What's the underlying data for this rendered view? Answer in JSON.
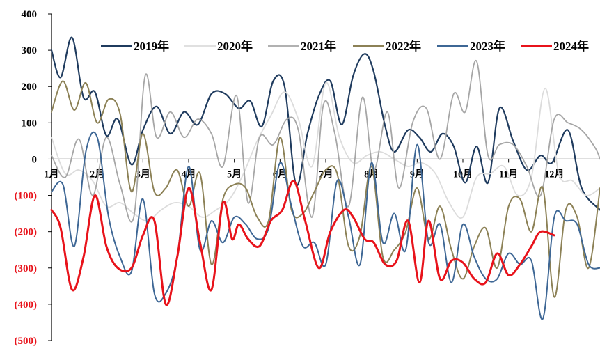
{
  "chart_data": {
    "type": "line",
    "title": "",
    "xlabel": "",
    "ylabel": "",
    "ylim": [
      -500,
      400
    ],
    "xlim": [
      1,
      13
    ],
    "grid": false,
    "legend_position": "top",
    "zero_label": "0",
    "yticks": [
      {
        "value": 400,
        "label": "400",
        "negative": false
      },
      {
        "value": 300,
        "label": "300",
        "negative": false
      },
      {
        "value": 200,
        "label": "200",
        "negative": false
      },
      {
        "value": 100,
        "label": "100",
        "negative": false
      },
      {
        "value": -100,
        "label": "(100)",
        "negative": true
      },
      {
        "value": -200,
        "label": "(200)",
        "negative": true
      },
      {
        "value": -300,
        "label": "(300)",
        "negative": true
      },
      {
        "value": -400,
        "label": "(400)",
        "negative": true
      },
      {
        "value": -500,
        "label": "(500)",
        "negative": true
      }
    ],
    "negative_label_color": "#e8131b",
    "xticks": [
      {
        "value": 1,
        "label": "1月"
      },
      {
        "value": 2,
        "label": "2月"
      },
      {
        "value": 3,
        "label": "3月"
      },
      {
        "value": 4,
        "label": "4月"
      },
      {
        "value": 5,
        "label": "5月"
      },
      {
        "value": 6,
        "label": "6月"
      },
      {
        "value": 7,
        "label": "7月"
      },
      {
        "value": 8,
        "label": "8月"
      },
      {
        "value": 9,
        "label": "9月"
      },
      {
        "value": 10,
        "label": "10月"
      },
      {
        "value": 11,
        "label": "11月"
      },
      {
        "value": 12,
        "label": "12月"
      }
    ],
    "series": [
      {
        "name": "2019年",
        "color": "#1f3b5e",
        "width": 2.2,
        "x": [
          1,
          1.2,
          1.45,
          1.7,
          1.95,
          2.2,
          2.45,
          2.75,
          3,
          3.3,
          3.6,
          3.9,
          4.2,
          4.5,
          4.8,
          5.1,
          5.35,
          5.6,
          5.85,
          6.1,
          6.35,
          6.6,
          6.85,
          7.1,
          7.35,
          7.6,
          7.85,
          8.05,
          8.3,
          8.5,
          8.8,
          9.05,
          9.3,
          9.55,
          9.8,
          10.05,
          10.3,
          10.55,
          10.8,
          11.1,
          11.4,
          11.7,
          11.95,
          12.3,
          12.6,
          13
        ],
        "y": [
          300,
          225,
          335,
          170,
          185,
          65,
          110,
          -15,
          80,
          145,
          70,
          130,
          95,
          180,
          180,
          140,
          160,
          90,
          215,
          200,
          -70,
          70,
          175,
          215,
          95,
          230,
          290,
          240,
          90,
          20,
          80,
          60,
          20,
          70,
          35,
          -65,
          35,
          -65,
          140,
          50,
          -30,
          10,
          -10,
          80,
          -80,
          -140
        ]
      },
      {
        "name": "2020年",
        "color": "#dcdcdc",
        "width": 1.8,
        "x": [
          1,
          1.3,
          1.6,
          1.9,
          2.2,
          2.5,
          2.8,
          3.1,
          3.4,
          3.7,
          4,
          4.3,
          4.6,
          4.9,
          5.2,
          5.5,
          5.8,
          6.1,
          6.4,
          6.7,
          7,
          7.3,
          7.6,
          7.9,
          8.2,
          8.5,
          8.8,
          9.1,
          9.4,
          9.7,
          10,
          10.3,
          10.6,
          10.9,
          11.2,
          11.5,
          11.8,
          12.1,
          12.4,
          12.7,
          13
        ],
        "y": [
          60,
          -40,
          -30,
          -60,
          -130,
          -120,
          -150,
          -170,
          -140,
          -120,
          -130,
          -160,
          -140,
          -110,
          -40,
          50,
          120,
          185,
          110,
          -20,
          210,
          60,
          -10,
          10,
          20,
          0,
          -20,
          -10,
          -40,
          -120,
          -160,
          -50,
          -40,
          -20,
          -100,
          -50,
          195,
          -40,
          -60,
          -100,
          -80
        ]
      },
      {
        "name": "2021年",
        "color": "#a6a6a6",
        "width": 1.8,
        "x": [
          1,
          1.3,
          1.6,
          1.9,
          2.2,
          2.5,
          2.8,
          3.05,
          3.3,
          3.6,
          3.9,
          4.2,
          4.5,
          4.75,
          5.05,
          5.3,
          5.55,
          5.85,
          6.15,
          6.4,
          6.7,
          6.95,
          7.2,
          7.5,
          7.8,
          8.05,
          8.35,
          8.6,
          8.9,
          9.2,
          9.5,
          9.8,
          10.05,
          10.3,
          10.55,
          10.8,
          11.1,
          11.4,
          11.7,
          12,
          12.3,
          12.6,
          12.9,
          13
        ],
        "y": [
          10,
          -50,
          55,
          -100,
          60,
          -70,
          -160,
          230,
          60,
          130,
          60,
          110,
          70,
          -20,
          175,
          -120,
          60,
          40,
          110,
          80,
          -160,
          150,
          70,
          -130,
          170,
          -30,
          130,
          -80,
          100,
          140,
          0,
          180,
          130,
          270,
          10,
          40,
          40,
          -20,
          -100,
          110,
          100,
          80,
          30,
          0
        ]
      },
      {
        "name": "2022年",
        "color": "#8c8156",
        "width": 2.0,
        "x": [
          1,
          1.25,
          1.5,
          1.75,
          2,
          2.25,
          2.5,
          2.75,
          3,
          3.25,
          3.5,
          3.75,
          4,
          4.25,
          4.5,
          4.75,
          5,
          5.25,
          5.5,
          5.75,
          6,
          6.25,
          6.5,
          6.75,
          7,
          7.25,
          7.5,
          7.75,
          8,
          8.25,
          8.5,
          8.75,
          9,
          9.25,
          9.5,
          9.75,
          10,
          10.25,
          10.5,
          10.75,
          11,
          11.25,
          11.5,
          11.75,
          12,
          12.25,
          12.5,
          12.75,
          13
        ],
        "y": [
          130,
          215,
          135,
          210,
          100,
          165,
          125,
          -90,
          70,
          -90,
          -80,
          -30,
          -130,
          -40,
          -290,
          -110,
          -70,
          -80,
          -160,
          -170,
          60,
          -140,
          -150,
          -90,
          -30,
          -40,
          -240,
          -210,
          -20,
          -270,
          -250,
          -200,
          -80,
          -220,
          -130,
          -250,
          -330,
          -240,
          -190,
          -300,
          -130,
          -110,
          -200,
          -80,
          -380,
          -140,
          -160,
          -300,
          -80
        ]
      },
      {
        "name": "2023年",
        "color": "#3e6795",
        "width": 2.0,
        "x": [
          1,
          1.25,
          1.5,
          1.75,
          2,
          2.25,
          2.5,
          2.75,
          3,
          3.25,
          3.5,
          3.75,
          4,
          4.25,
          4.5,
          4.75,
          5,
          5.25,
          5.5,
          5.75,
          6,
          6.25,
          6.5,
          6.75,
          7,
          7.25,
          7.5,
          7.75,
          8,
          8.25,
          8.5,
          8.75,
          9,
          9.25,
          9.5,
          9.75,
          10,
          10.25,
          10.5,
          10.75,
          11,
          11.25,
          11.5,
          11.75,
          12,
          12.25,
          12.5,
          12.75,
          13
        ],
        "y": [
          -90,
          -70,
          -240,
          20,
          60,
          -160,
          -270,
          -310,
          -110,
          -370,
          -370,
          -270,
          -20,
          -250,
          -170,
          -230,
          -160,
          -180,
          -220,
          -190,
          -10,
          -130,
          -240,
          -230,
          -290,
          -60,
          -160,
          -290,
          -10,
          -230,
          -150,
          -250,
          40,
          -230,
          -180,
          -340,
          -180,
          -270,
          -330,
          -330,
          -260,
          -290,
          -280,
          -440,
          -160,
          -170,
          -180,
          -290,
          -300
        ]
      },
      {
        "name": "2024年",
        "color": "#e8131b",
        "width": 3.0,
        "x": [
          1,
          1.2,
          1.45,
          1.7,
          1.95,
          2.2,
          2.45,
          2.75,
          3,
          3.25,
          3.5,
          3.75,
          4,
          4.25,
          4.5,
          4.75,
          4.95,
          5.1,
          5.3,
          5.55,
          5.8,
          6.05,
          6.3,
          6.55,
          6.85,
          7.1,
          7.4,
          7.6,
          7.85,
          8.05,
          8.3,
          8.55,
          8.8,
          9.05,
          9.25,
          9.5,
          9.75,
          10,
          10.25,
          10.5,
          10.75,
          11,
          11.25,
          11.5,
          11.7,
          12
        ],
        "y": [
          -140,
          -190,
          -360,
          -270,
          -100,
          -240,
          -300,
          -300,
          -210,
          -170,
          -400,
          -270,
          -80,
          -230,
          -360,
          -120,
          -220,
          -180,
          -220,
          -240,
          -170,
          -140,
          -60,
          -170,
          -300,
          -200,
          -140,
          -160,
          -220,
          -230,
          -290,
          -280,
          -170,
          -340,
          -170,
          -330,
          -280,
          -285,
          -330,
          -340,
          -260,
          -320,
          -290,
          -240,
          -200,
          -210
        ]
      }
    ]
  }
}
